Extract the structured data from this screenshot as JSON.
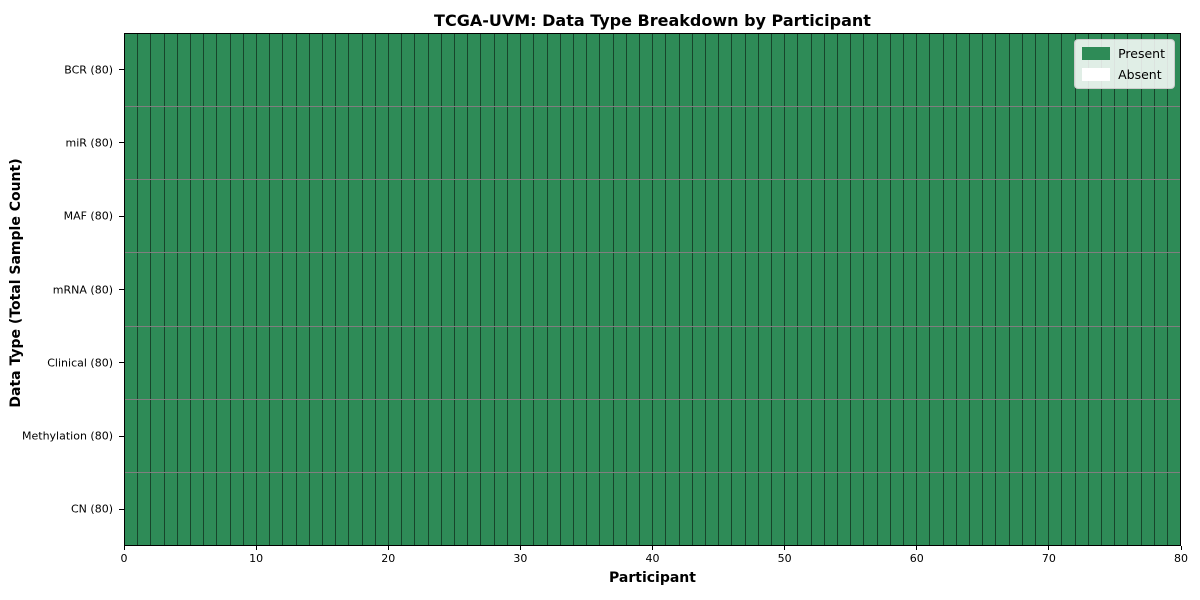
{
  "chart_data": {
    "type": "heatmap",
    "title": "TCGA-UVM: Data Type Breakdown by Participant",
    "xlabel": "Participant",
    "ylabel": "Data Type (Total Sample Count)",
    "x_ticks": [
      0,
      10,
      20,
      30,
      40,
      50,
      60,
      70,
      80
    ],
    "x_range": [
      0,
      80
    ],
    "participants": 80,
    "grid": "cell-edges-only",
    "legend_position": "upper-right",
    "rows": [
      {
        "label": "BCR (80)",
        "present_count": 80,
        "absent_count": 0
      },
      {
        "label": "miR (80)",
        "present_count": 80,
        "absent_count": 0
      },
      {
        "label": "MAF (80)",
        "present_count": 80,
        "absent_count": 0
      },
      {
        "label": "mRNA (80)",
        "present_count": 80,
        "absent_count": 0
      },
      {
        "label": "Clinical (80)",
        "present_count": 80,
        "absent_count": 0
      },
      {
        "label": "Methylation (80)",
        "present_count": 80,
        "absent_count": 0
      },
      {
        "label": "CN (80)",
        "present_count": 80,
        "absent_count": 0
      }
    ],
    "legend": [
      {
        "label": "Present",
        "color": "#2e8b57"
      },
      {
        "label": "Absent",
        "color": "#ffffff"
      }
    ],
    "colors": {
      "present": "#2e8b57",
      "absent": "#ffffff",
      "cell_edge": "rgba(0,0,0,0.5)",
      "axis_spine": "#000000",
      "legend_border": "#cccccc"
    }
  }
}
